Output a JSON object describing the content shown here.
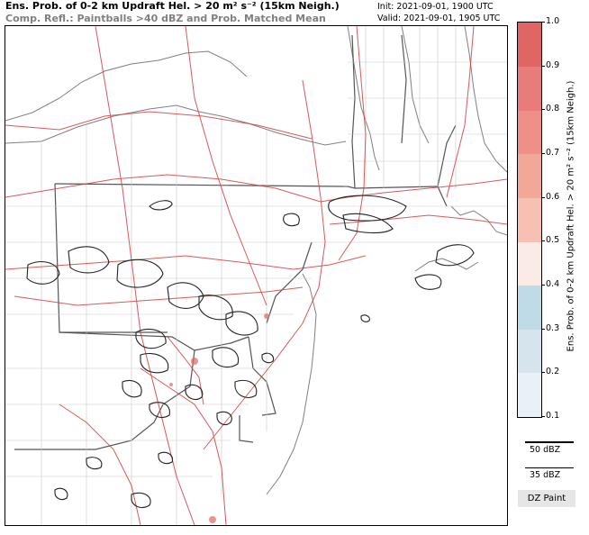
{
  "header": {
    "title_html": "Ens. Prob. of 0-2 km Updraft Hel. > 20 m² s⁻² (15km Neigh.)",
    "subtitle": "Comp. Refl.: Paintballs >40 dBZ and Prob. Matched Mean",
    "init": "Init: 2021-09-01, 1900 UTC",
    "valid": "Valid: 2021-09-01, 1905 UTC"
  },
  "colorbar": {
    "title": "Ens. Prob. of 0-2 km Updraft Hel. > 20 m² s⁻² (15km Neigh.)",
    "ticks": [
      "1.0",
      "0.9",
      "0.8",
      "0.7",
      "0.6",
      "0.5",
      "0.4",
      "0.3",
      "0.2",
      "0.1"
    ],
    "colors_top_to_bottom": [
      "#e06666",
      "#e87b7b",
      "#ee9089",
      "#f2a898",
      "#f6c0b3",
      "#f8d8cf",
      "#faebe6",
      "#bfdbe8",
      "#d6e4ee",
      "#eaf1f6"
    ]
  },
  "legend": {
    "line_50": "50 dBZ",
    "line_35": "35 dBZ",
    "button": "DZ Paint"
  }
}
